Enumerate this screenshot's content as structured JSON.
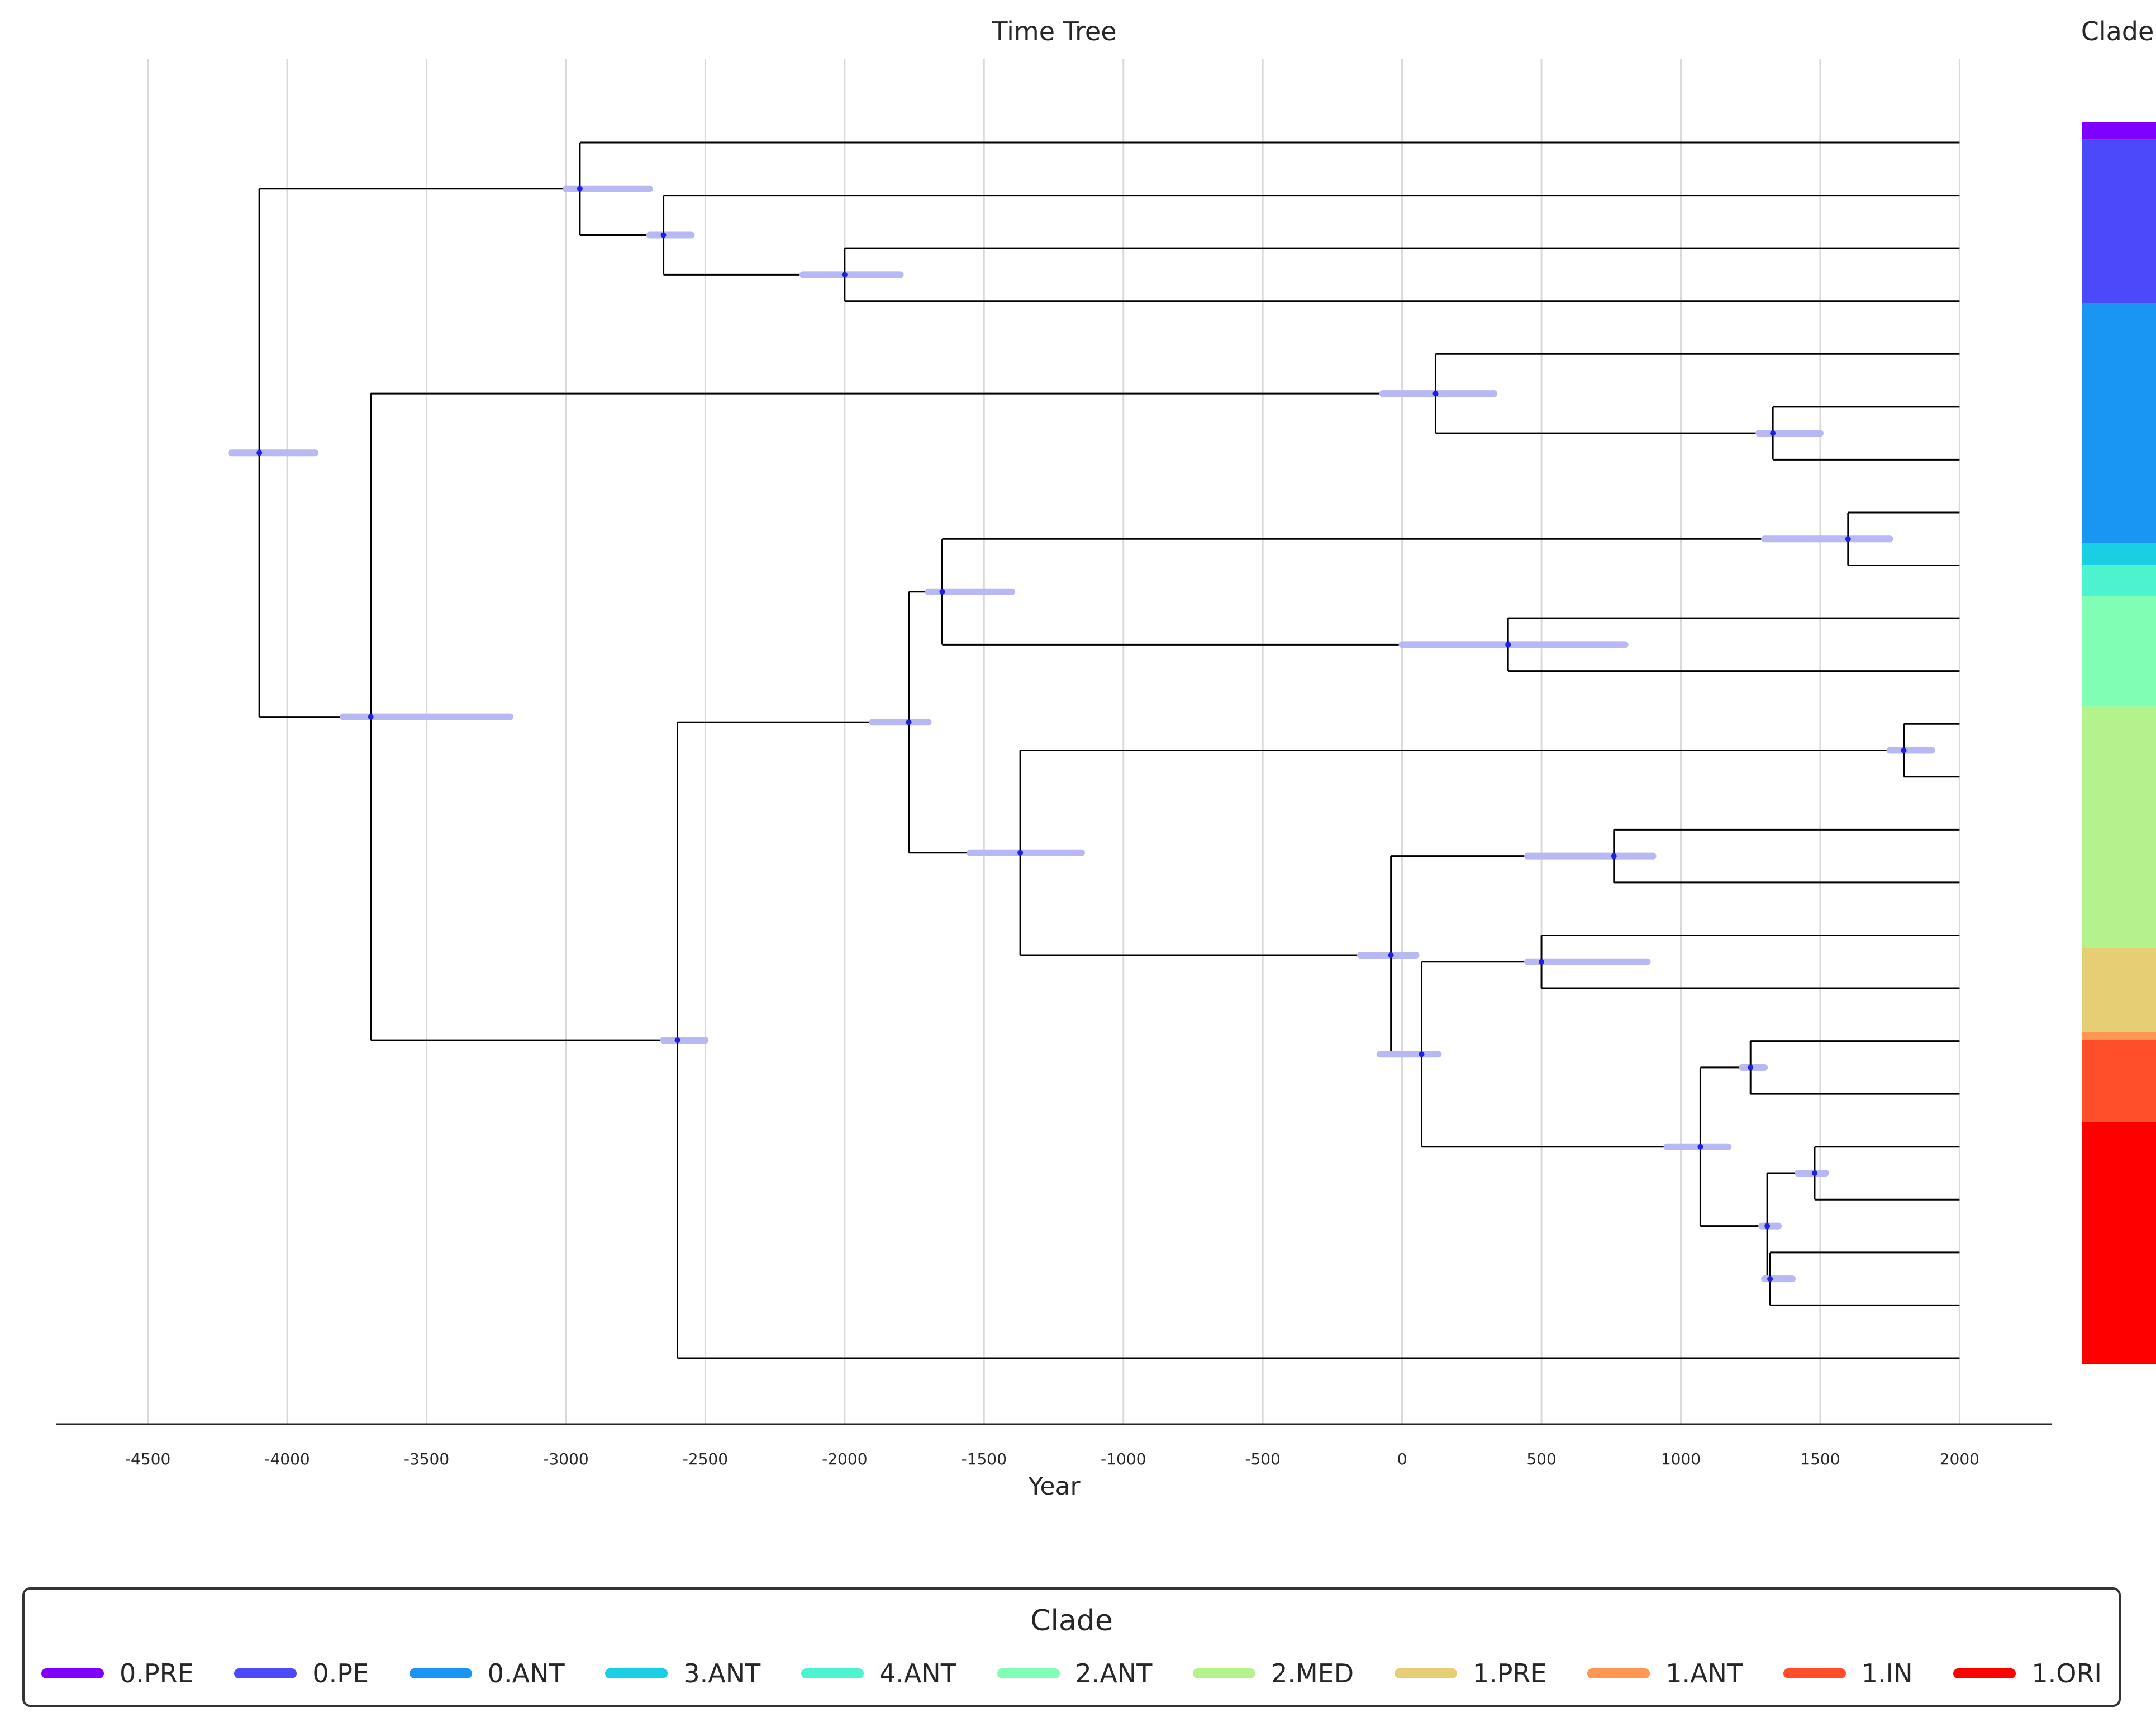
{
  "chart_data": {
    "type": "phylogenetic-time-tree",
    "title": "Time Tree",
    "xlabel": "Year",
    "xlim": [
      -4830,
      2330
    ],
    "xticks": [
      -4500,
      -4000,
      -3500,
      -3000,
      -2500,
      -2000,
      -1500,
      -1000,
      -500,
      0,
      500,
      1000,
      1500,
      2000
    ],
    "grid": true,
    "clade_bar_title": "Clade",
    "legend": {
      "title": "Clade",
      "placement": "bottom",
      "items": [
        {
          "label": "0.PRE",
          "color": "#8000ff"
        },
        {
          "label": "0.PE",
          "color": "#4a4afb"
        },
        {
          "label": "0.ANT",
          "color": "#1996f3"
        },
        {
          "label": "3.ANT",
          "color": "#1acee3"
        },
        {
          "label": "4.ANT",
          "color": "#4df3ce"
        },
        {
          "label": "2.ANT",
          "color": "#80ffb4"
        },
        {
          "label": "2.MED",
          "color": "#b4f38c"
        },
        {
          "label": "1.PRE",
          "color": "#e6ce74"
        },
        {
          "label": "1.ANT",
          "color": "#ff9652"
        },
        {
          "label": "1.IN",
          "color": "#ff4f2a"
        },
        {
          "label": "1.ORI",
          "color": "#ff0000"
        }
      ]
    },
    "clade_bar": [
      {
        "clade": "0.PRE",
        "color": "#8000ff",
        "tip_fraction": [
          0.0,
          0.014
        ]
      },
      {
        "clade": "0.PE",
        "color": "#4a4afb",
        "tip_fraction": [
          0.014,
          0.146
        ]
      },
      {
        "clade": "0.ANT",
        "color": "#1996f3",
        "tip_fraction": [
          0.146,
          0.339
        ]
      },
      {
        "clade": "3.ANT",
        "color": "#1acee3",
        "tip_fraction": [
          0.339,
          0.357
        ]
      },
      {
        "clade": "4.ANT",
        "color": "#4df3ce",
        "tip_fraction": [
          0.357,
          0.382
        ]
      },
      {
        "clade": "2.ANT",
        "color": "#80ffb4",
        "tip_fraction": [
          0.382,
          0.471
        ]
      },
      {
        "clade": "2.MED",
        "color": "#b4f38c",
        "tip_fraction": [
          0.471,
          0.665
        ]
      },
      {
        "clade": "1.PRE",
        "color": "#e6ce74",
        "tip_fraction": [
          0.665,
          0.733
        ]
      },
      {
        "clade": "1.ANT",
        "color": "#ff9652",
        "tip_fraction": [
          0.733,
          0.739
        ]
      },
      {
        "clade": "1.IN",
        "color": "#ff4f2a",
        "tip_fraction": [
          0.739,
          0.805
        ]
      },
      {
        "clade": "1.ORI",
        "color": "#ff0000",
        "tip_fraction": [
          0.805,
          1.0
        ]
      }
    ],
    "nodes": [
      {
        "id": "root",
        "year": -4100,
        "ci": [
          -4200,
          -3900
        ],
        "children": [
          "a",
          "b"
        ]
      },
      {
        "id": "a",
        "year": -2950,
        "ci": [
          -3000,
          -2700
        ],
        "children": [
          "tipA1",
          "a2"
        ]
      },
      {
        "id": "a2",
        "year": -2650,
        "ci": [
          -2700,
          -2550
        ],
        "children": [
          "tipA2",
          "a3"
        ]
      },
      {
        "id": "a3",
        "year": -2000,
        "ci": [
          -2150,
          -1800
        ],
        "children": [
          "tipA3",
          "tipA4"
        ]
      },
      {
        "id": "b",
        "year": -3700,
        "ci": [
          -3800,
          -3200
        ],
        "children": [
          "b1",
          "c"
        ]
      },
      {
        "id": "b1",
        "year": 120,
        "ci": [
          -70,
          330
        ],
        "children": [
          "tipB1",
          "b2"
        ]
      },
      {
        "id": "b2",
        "year": 1330,
        "ci": [
          1280,
          1500
        ],
        "children": [
          "tipB2",
          "tipB3"
        ]
      },
      {
        "id": "c",
        "year": -2600,
        "ci": [
          -2650,
          -2500
        ],
        "children": [
          "d",
          "e"
        ]
      },
      {
        "id": "d",
        "year": -1770,
        "ci": [
          -1900,
          -1700
        ],
        "children": [
          "d1",
          "e2"
        ]
      },
      {
        "id": "d1",
        "year": -1650,
        "ci": [
          -1700,
          -1400
        ],
        "children": [
          "d2",
          "d3"
        ]
      },
      {
        "id": "d2",
        "year": 1600,
        "ci": [
          1300,
          1750
        ],
        "children": [
          "tipD1",
          "tipD2"
        ]
      },
      {
        "id": "d3",
        "year": 380,
        "ci": [
          0,
          800
        ],
        "children": [
          "tipD3",
          "tipD4"
        ]
      },
      {
        "id": "e2",
        "year": -1370,
        "ci": [
          -1550,
          -1150
        ],
        "children": [
          "f",
          "g"
        ]
      },
      {
        "id": "f",
        "year": 1800,
        "ci": [
          1750,
          1900
        ],
        "children": [
          "tipF1",
          "tipF2"
        ]
      },
      {
        "id": "g",
        "year": -40,
        "ci": [
          -150,
          50
        ],
        "children": [
          "g1",
          "h"
        ]
      },
      {
        "id": "g1",
        "year": 760,
        "ci": [
          450,
          900
        ],
        "children": [
          "tipG1",
          "tipG2"
        ]
      },
      {
        "id": "h",
        "year": 70,
        "ci": [
          -80,
          130
        ],
        "children": [
          "h1",
          "i"
        ]
      },
      {
        "id": "h1",
        "year": 500,
        "ci": [
          450,
          880
        ],
        "children": [
          "tipH1",
          "tipH2"
        ]
      },
      {
        "id": "i",
        "year": 1070,
        "ci": [
          950,
          1170
        ],
        "children": [
          "j",
          "k"
        ]
      },
      {
        "id": "j",
        "year": 1250,
        "ci": [
          1220,
          1300
        ],
        "children": [
          "tipJ1",
          "tipJ2"
        ]
      },
      {
        "id": "k",
        "year": 1310,
        "ci": [
          1290,
          1350
        ],
        "children": [
          "l",
          "m"
        ]
      },
      {
        "id": "l",
        "year": 1480,
        "ci": [
          1420,
          1520
        ],
        "children": [
          "tipL1",
          "tipL2"
        ]
      },
      {
        "id": "m",
        "year": 1320,
        "ci": [
          1300,
          1400
        ],
        "children": [
          "tipM1",
          "tipM2"
        ]
      }
    ]
  }
}
